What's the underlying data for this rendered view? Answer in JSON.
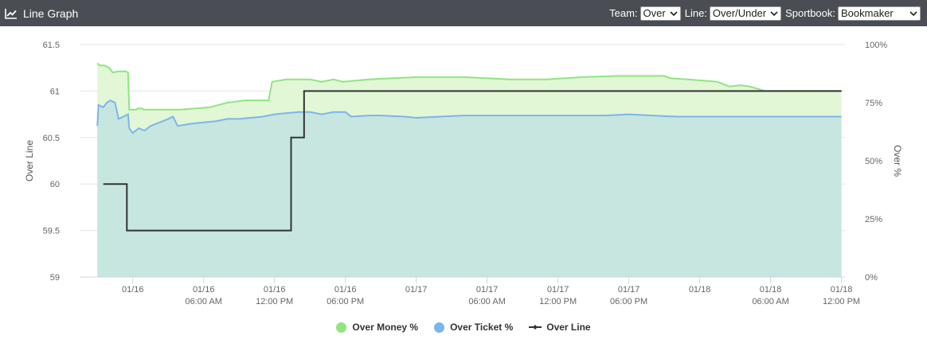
{
  "header": {
    "title": "Line Graph",
    "icon": "line-chart-icon",
    "team_label": "Team:",
    "team_value": "Over",
    "line_label": "Line:",
    "line_value": "Over/Under",
    "sportbook_label": "Sportbook:",
    "sportbook_value": "Bookmaker"
  },
  "colors": {
    "header_bg": "#4a4e54",
    "money": "#90e580",
    "money_fill": "#e2f7d5",
    "ticket": "#7cb5ec",
    "ticket_fill": "#c7e6df",
    "line": "#333333",
    "grid": "#e6e6e6"
  },
  "legend": {
    "money": "Over Money %",
    "ticket": "Over Ticket %",
    "line": "Over Line"
  },
  "chart_data": {
    "type": "line",
    "x_unit": "hours after 01/16 00:00",
    "x_range": [
      -4.5,
      60.3
    ],
    "x_ticks": [
      {
        "x": 0,
        "l1": "01/16",
        "l2": ""
      },
      {
        "x": 6,
        "l1": "01/16",
        "l2": "06:00 AM"
      },
      {
        "x": 12,
        "l1": "01/16",
        "l2": "12:00 PM"
      },
      {
        "x": 18,
        "l1": "01/16",
        "l2": "06:00 PM"
      },
      {
        "x": 24,
        "l1": "01/17",
        "l2": ""
      },
      {
        "x": 30,
        "l1": "01/17",
        "l2": "06:00 AM"
      },
      {
        "x": 36,
        "l1": "01/17",
        "l2": "12:00 PM"
      },
      {
        "x": 42,
        "l1": "01/17",
        "l2": "06:00 PM"
      },
      {
        "x": 48,
        "l1": "01/18",
        "l2": ""
      },
      {
        "x": 54,
        "l1": "01/18",
        "l2": "06:00 AM"
      },
      {
        "x": 60,
        "l1": "01/18",
        "l2": "12:00 PM"
      }
    ],
    "y_left": {
      "label": "Over Line",
      "min": 59,
      "max": 61.5,
      "ticks": [
        "59",
        "59.5",
        "60",
        "60.5",
        "61",
        "61.5"
      ]
    },
    "y_right": {
      "label": "Over %",
      "min": 0,
      "max": 100,
      "ticks": [
        "0%",
        "25%",
        "50%",
        "75%",
        "100%"
      ]
    },
    "grid": true,
    "legend_position": "bottom",
    "series": [
      {
        "name": "Over Money %",
        "axis": "right",
        "type": "area",
        "points": [
          [
            -3,
            92
          ],
          [
            -2.8,
            91
          ],
          [
            -2.4,
            91
          ],
          [
            -2,
            90
          ],
          [
            -1.7,
            88
          ],
          [
            -1.2,
            88.5
          ],
          [
            -0.6,
            88.5
          ],
          [
            -0.4,
            88
          ],
          [
            -0.3,
            72
          ],
          [
            0.3,
            72
          ],
          [
            0.4,
            72.5
          ],
          [
            0.8,
            72.5
          ],
          [
            0.9,
            72
          ],
          [
            4,
            72
          ],
          [
            6.5,
            73
          ],
          [
            8,
            75
          ],
          [
            9.5,
            76
          ],
          [
            11.5,
            76
          ],
          [
            11.8,
            84
          ],
          [
            13,
            85
          ],
          [
            15,
            85
          ],
          [
            16,
            84
          ],
          [
            17,
            85
          ],
          [
            17.8,
            84
          ],
          [
            20,
            85
          ],
          [
            22,
            85.5
          ],
          [
            24,
            86
          ],
          [
            26,
            86
          ],
          [
            28,
            86
          ],
          [
            30,
            85.5
          ],
          [
            32,
            85
          ],
          [
            35,
            85
          ],
          [
            38,
            86
          ],
          [
            41,
            86.5
          ],
          [
            45,
            86.5
          ],
          [
            45.5,
            85.5
          ],
          [
            47,
            85
          ],
          [
            49.5,
            84
          ],
          [
            50.5,
            82
          ],
          [
            51.5,
            82.5
          ],
          [
            52.2,
            82
          ],
          [
            52.9,
            81
          ],
          [
            53.5,
            80
          ],
          [
            60,
            80
          ]
        ]
      },
      {
        "name": "Over Ticket %",
        "axis": "right",
        "type": "area",
        "points": [
          [
            -3,
            65
          ],
          [
            -2.9,
            74
          ],
          [
            -2.5,
            73
          ],
          [
            -2.2,
            75
          ],
          [
            -1.9,
            76
          ],
          [
            -1.5,
            75
          ],
          [
            -1.2,
            68
          ],
          [
            -0.8,
            69
          ],
          [
            -0.4,
            70
          ],
          [
            -0.3,
            64
          ],
          [
            0,
            62
          ],
          [
            0.5,
            64
          ],
          [
            1,
            63
          ],
          [
            1.5,
            65
          ],
          [
            2,
            66
          ],
          [
            2.5,
            67
          ],
          [
            3,
            68
          ],
          [
            3.4,
            69
          ],
          [
            3.8,
            65
          ],
          [
            5,
            66
          ],
          [
            6,
            66.5
          ],
          [
            7,
            67
          ],
          [
            8,
            68
          ],
          [
            9,
            68
          ],
          [
            10,
            68.5
          ],
          [
            11,
            69
          ],
          [
            12,
            70
          ],
          [
            13,
            70.5
          ],
          [
            14,
            71
          ],
          [
            15,
            71
          ],
          [
            16,
            70
          ],
          [
            17,
            71
          ],
          [
            18,
            71
          ],
          [
            18.5,
            69
          ],
          [
            20,
            69.5
          ],
          [
            21,
            69.5
          ],
          [
            23,
            69
          ],
          [
            24,
            68.5
          ],
          [
            26,
            69
          ],
          [
            28,
            69.5
          ],
          [
            30,
            69.5
          ],
          [
            32,
            69.5
          ],
          [
            34,
            69.5
          ],
          [
            36,
            69.5
          ],
          [
            38,
            69.5
          ],
          [
            40,
            69.5
          ],
          [
            42,
            70
          ],
          [
            44,
            69.5
          ],
          [
            46,
            69
          ],
          [
            48,
            69
          ],
          [
            50,
            69
          ],
          [
            52,
            69
          ],
          [
            54,
            69
          ],
          [
            56,
            69
          ],
          [
            58,
            69
          ],
          [
            60,
            69
          ]
        ]
      },
      {
        "name": "Over Line",
        "axis": "left",
        "type": "step",
        "points": [
          [
            -2.5,
            60
          ],
          [
            -0.5,
            60
          ],
          [
            -0.5,
            59.5
          ],
          [
            13.4,
            59.5
          ],
          [
            13.4,
            60.5
          ],
          [
            14.5,
            60.5
          ],
          [
            14.5,
            61
          ],
          [
            60,
            61
          ]
        ]
      }
    ]
  }
}
